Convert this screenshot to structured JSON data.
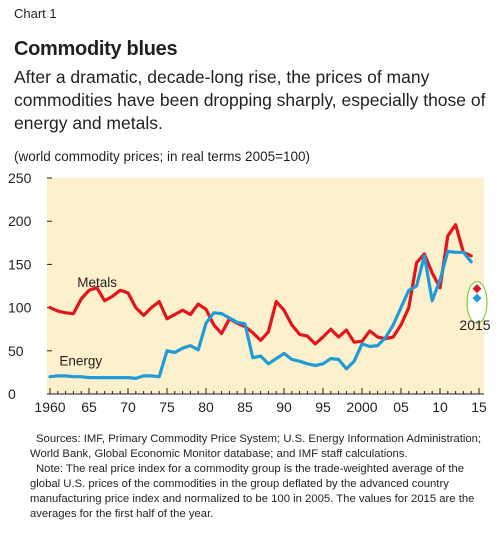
{
  "header": {
    "chart_number": "Chart 1",
    "title": "Commodity blues",
    "subtitle": "After a dramatic, decade-long rise, the prices of many commodities have been dropping sharply, especially those of energy and metals.",
    "units": "(world commodity prices; in real terms 2005=100)"
  },
  "footer": {
    "sources": "Sources: IMF, Primary Commodity Price System; U.S. Energy Information Administration; World Bank, Global Economic Monitor database; and IMF staff calculations.",
    "note": "Note: The real price index for a commodity group is the trade-weighted average of the global U.S. prices of the commodities in the group deflated by the advanced country manufacturing price index and normalized to be 100 in 2005. The values for 2015 are the averages for the first half of the year."
  },
  "chart_data": {
    "type": "line",
    "title": "Commodity blues",
    "ylim": [
      0,
      250
    ],
    "yticks": [
      0,
      50,
      100,
      150,
      200,
      250
    ],
    "xlim": [
      1960,
      2015
    ],
    "xticks": [
      {
        "year": 1960,
        "label": "1960"
      },
      {
        "year": 1965,
        "label": "65"
      },
      {
        "year": 1970,
        "label": "70"
      },
      {
        "year": 1975,
        "label": "75"
      },
      {
        "year": 1980,
        "label": "80"
      },
      {
        "year": 1985,
        "label": "85"
      },
      {
        "year": 1990,
        "label": "90"
      },
      {
        "year": 1995,
        "label": "95"
      },
      {
        "year": 2000,
        "label": "2000"
      },
      {
        "year": 2005,
        "label": "05"
      },
      {
        "year": 2010,
        "label": "10"
      },
      {
        "year": 2015,
        "label": "15"
      }
    ],
    "grid": false,
    "background_color": "#fdf0cd",
    "x": [
      1960,
      1961,
      1962,
      1963,
      1964,
      1965,
      1966,
      1967,
      1968,
      1969,
      1970,
      1971,
      1972,
      1973,
      1974,
      1975,
      1976,
      1977,
      1978,
      1979,
      1980,
      1981,
      1982,
      1983,
      1984,
      1985,
      1986,
      1987,
      1988,
      1989,
      1990,
      1991,
      1992,
      1993,
      1994,
      1995,
      1996,
      1997,
      1998,
      1999,
      2000,
      2001,
      2002,
      2003,
      2004,
      2005,
      2006,
      2007,
      2008,
      2009,
      2010,
      2011,
      2012,
      2013,
      2014
    ],
    "series": [
      {
        "name": "Metals",
        "color": "#e3151b",
        "values": [
          100,
          96,
          94,
          93,
          110,
          120,
          123,
          108,
          113,
          120,
          117,
          100,
          91,
          100,
          107,
          87,
          92,
          97,
          92,
          104,
          98,
          80,
          70,
          87,
          82,
          78,
          71,
          62,
          72,
          107,
          97,
          80,
          69,
          67,
          58,
          66,
          75,
          66,
          74,
          60,
          61,
          73,
          66,
          64,
          66,
          80,
          100,
          152,
          162,
          140,
          123,
          183,
          196,
          164,
          160
        ]
      },
      {
        "name": "Energy",
        "color": "#1f9bd7",
        "values": [
          20,
          21,
          21,
          20,
          20,
          19,
          19,
          19,
          19,
          19,
          19,
          18,
          21,
          21,
          20,
          50,
          48,
          53,
          56,
          51,
          82,
          94,
          93,
          88,
          83,
          81,
          42,
          44,
          35,
          41,
          47,
          40,
          38,
          35,
          33,
          35,
          41,
          40,
          29,
          38,
          58,
          55,
          56,
          65,
          80,
          100,
          120,
          125,
          160,
          108,
          132,
          165,
          164,
          164,
          153
        ]
      }
    ],
    "highlight_points": [
      {
        "series": "Metals",
        "year": 2015,
        "value": 122,
        "color": "#e3151b"
      },
      {
        "series": "Energy",
        "year": 2015,
        "value": 111,
        "color": "#1f9bd7"
      }
    ],
    "highlight_label": "2015",
    "series_labels": [
      {
        "text": "Metals",
        "year": 1963.5,
        "value": 124
      },
      {
        "text": "Energy",
        "year": 1961.2,
        "value": 33
      }
    ]
  }
}
